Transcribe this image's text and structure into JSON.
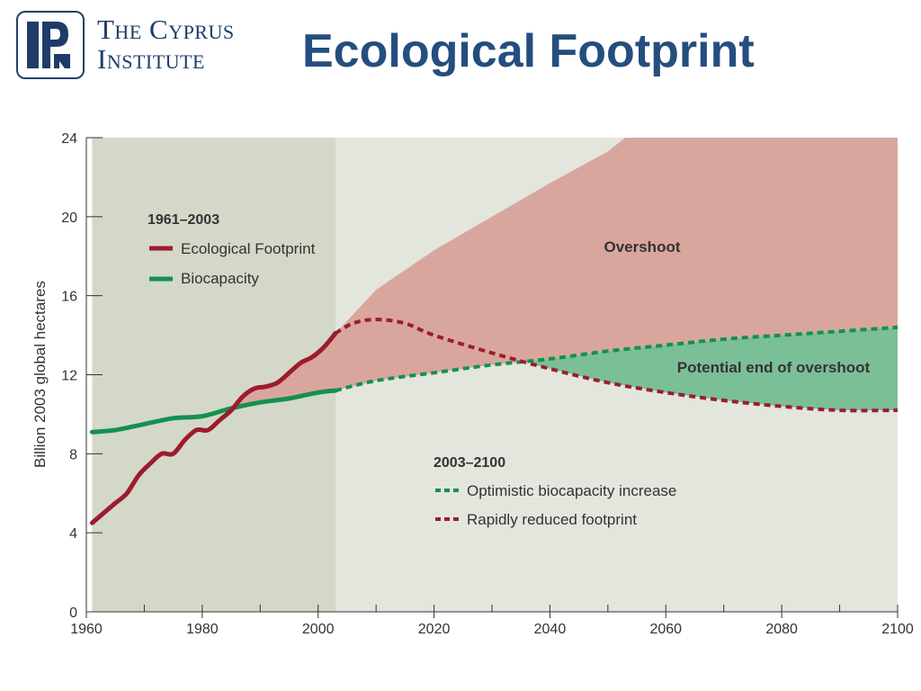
{
  "header": {
    "logo_line1": "The Cyprus",
    "logo_line2": "Institute",
    "title": "Ecological Footprint"
  },
  "colors": {
    "historical_bg": "#d4d8c8",
    "future_bg": "#e3e6dd",
    "footprint": "#9c1c2e",
    "biocapacity": "#149050",
    "overshoot_fill": "#d9a69d",
    "end_overshoot_fill": "#7bbf96",
    "logo": "#1f3b6a"
  },
  "chart_data": {
    "type": "line",
    "ylabel": "Billion 2003 global hectares",
    "xlim": [
      1960,
      2100
    ],
    "ylim": [
      0,
      24
    ],
    "x_ticks": [
      1960,
      1980,
      2000,
      2020,
      2040,
      2060,
      2080,
      2100
    ],
    "y_ticks": [
      0,
      4,
      8,
      12,
      16,
      20,
      24
    ],
    "shaded_period": [
      1961,
      2003
    ],
    "legend_historical": {
      "title": "1961–2003",
      "items": [
        "Ecological Footprint",
        "Biocapacity"
      ]
    },
    "legend_projection": {
      "title": "2003–2100",
      "items": [
        "Optimistic biocapacity increase",
        "Rapidly reduced footprint"
      ]
    },
    "annotations": [
      "Overshoot",
      "Potential end of overshoot"
    ],
    "series": [
      {
        "name": "Ecological Footprint",
        "style": "solid",
        "x": [
          1961,
          1963,
          1965,
          1967,
          1969,
          1971,
          1973,
          1975,
          1977,
          1979,
          1981,
          1983,
          1985,
          1987,
          1989,
          1991,
          1993,
          1995,
          1997,
          1999,
          2001,
          2003
        ],
        "values": [
          4.5,
          5.0,
          5.5,
          6.0,
          6.9,
          7.5,
          8.0,
          8.0,
          8.7,
          9.2,
          9.2,
          9.7,
          10.2,
          10.9,
          11.3,
          11.4,
          11.6,
          12.1,
          12.6,
          12.9,
          13.4,
          14.1
        ]
      },
      {
        "name": "Biocapacity",
        "style": "solid",
        "x": [
          1961,
          1965,
          1970,
          1975,
          1980,
          1985,
          1990,
          1995,
          2000,
          2003
        ],
        "values": [
          9.1,
          9.2,
          9.5,
          9.8,
          9.9,
          10.3,
          10.6,
          10.8,
          11.1,
          11.2
        ]
      },
      {
        "name": "Optimistic biocapacity increase",
        "style": "dashed",
        "x": [
          2003,
          2010,
          2020,
          2030,
          2040,
          2050,
          2060,
          2070,
          2080,
          2090,
          2100
        ],
        "values": [
          11.2,
          11.7,
          12.1,
          12.5,
          12.8,
          13.2,
          13.5,
          13.8,
          14.0,
          14.2,
          14.4
        ]
      },
      {
        "name": "Rapidly reduced footprint",
        "style": "dashed",
        "x": [
          2003,
          2006,
          2010,
          2015,
          2020,
          2030,
          2040,
          2050,
          2060,
          2070,
          2080,
          2090,
          2100
        ],
        "values": [
          14.1,
          14.6,
          14.8,
          14.6,
          14.0,
          13.1,
          12.3,
          11.6,
          11.1,
          10.7,
          10.4,
          10.2,
          10.2
        ]
      },
      {
        "name": "Overshoot upper boundary",
        "style": "area-edge",
        "x": [
          2003,
          2010,
          2020,
          2030,
          2040,
          2050,
          2053,
          2100
        ],
        "values": [
          14.1,
          16.3,
          18.3,
          20.0,
          21.7,
          23.3,
          24.0,
          24.0
        ]
      }
    ]
  }
}
